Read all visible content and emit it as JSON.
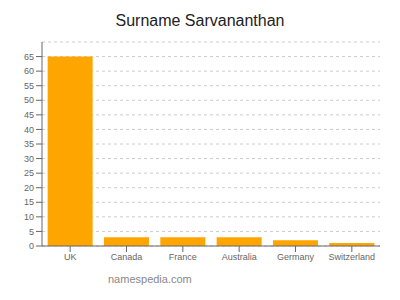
{
  "chart_data": {
    "type": "bar",
    "title": "Surname Sarvananthan",
    "categories": [
      "UK",
      "Canada",
      "France",
      "Australia",
      "Germany",
      "Switzerland"
    ],
    "values": [
      65,
      3,
      3,
      3,
      2,
      1
    ],
    "color": "#FFA500",
    "ylim": [
      0,
      70
    ],
    "yticks": [
      0,
      5,
      10,
      15,
      20,
      25,
      30,
      35,
      40,
      45,
      50,
      55,
      60,
      65
    ],
    "grid": true,
    "annotations": [
      "namespedia.com"
    ]
  }
}
